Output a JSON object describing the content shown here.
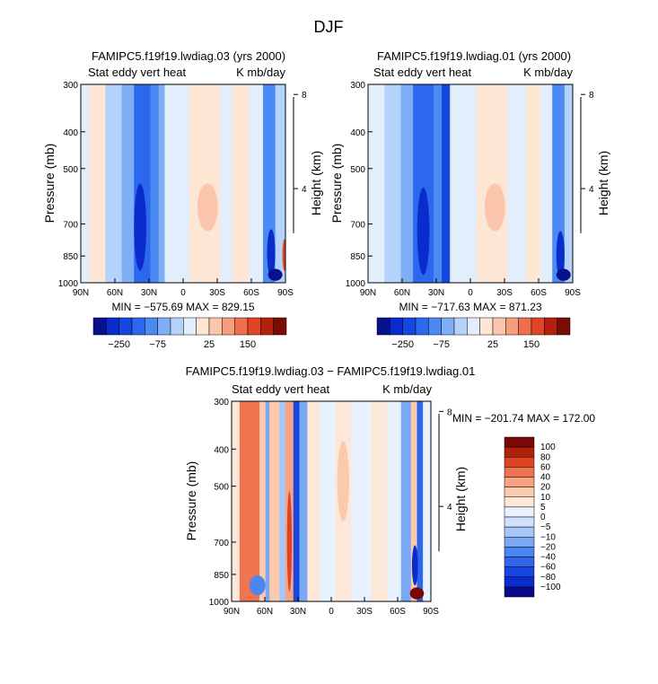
{
  "page": {
    "title": "DJF"
  },
  "colors": {
    "levels_13": [
      "#08108c",
      "#0a2ccc",
      "#1646e0",
      "#2c68ee",
      "#4a8af2",
      "#7eaef6",
      "#b4d2fa",
      "#e2eefc",
      "#fde6d4",
      "#fbc6ac",
      "#f79e7e",
      "#f06e4e",
      "#e04626",
      "#b4200e",
      "#7a0c06"
    ],
    "levels_diff": [
      "#080a8a",
      "#0a2ccc",
      "#1846e0",
      "#2e66ec",
      "#4c86f0",
      "#7aa8f4",
      "#a6c6f8",
      "#cee0fc",
      "#e8f2fe",
      "#fde8d8",
      "#fbcaae",
      "#f7a282",
      "#f07450",
      "#dc4424",
      "#b0200c",
      "#7a0806"
    ]
  },
  "chart_data": [
    {
      "type": "heatmap",
      "title": "FAMIPC5.f19f19.lwdiag.03 (yrs 2000)",
      "subtitle_left": "Stat eddy vert heat",
      "subtitle_right": "K mb/day",
      "ylabel": "Pressure (mb)",
      "ylabel_right": "Height (km)",
      "x_ticks": [
        "90N",
        "60N",
        "30N",
        "0",
        "30S",
        "60S",
        "90S"
      ],
      "y_ticks": [
        "300",
        "400",
        "500",
        "700",
        "850",
        "1000"
      ],
      "y_ticks_right": [
        "8",
        "4"
      ],
      "stats": "MIN = −575.69    MAX = 829.15",
      "colorbar_labels": [
        "−250",
        "−75",
        "25",
        "150"
      ],
      "bands": [
        {
          "from": 0.0,
          "to": 0.04,
          "level": 7
        },
        {
          "from": 0.04,
          "to": 0.12,
          "level": 8
        },
        {
          "from": 0.12,
          "to": 0.2,
          "level": 6
        },
        {
          "from": 0.2,
          "to": 0.26,
          "level": 5
        },
        {
          "from": 0.26,
          "to": 0.34,
          "level": 3
        },
        {
          "from": 0.34,
          "to": 0.38,
          "level": 4
        },
        {
          "from": 0.38,
          "to": 0.41,
          "level": 5
        },
        {
          "from": 0.41,
          "to": 0.53,
          "level": 7
        },
        {
          "from": 0.53,
          "to": 0.68,
          "level": 8
        },
        {
          "from": 0.68,
          "to": 0.74,
          "level": 7
        },
        {
          "from": 0.74,
          "to": 0.82,
          "level": 8
        },
        {
          "from": 0.82,
          "to": 0.89,
          "level": 7
        },
        {
          "from": 0.89,
          "to": 0.95,
          "level": 4
        },
        {
          "from": 0.95,
          "to": 1.0,
          "level": 6
        }
      ],
      "blobs": [
        {
          "cx": 0.62,
          "cy": 0.62,
          "rx": 0.05,
          "ry": 0.12,
          "level": 9
        },
        {
          "cx": 0.29,
          "cy": 0.72,
          "rx": 0.03,
          "ry": 0.22,
          "level": 1
        },
        {
          "cx": 0.93,
          "cy": 0.85,
          "rx": 0.02,
          "ry": 0.12,
          "level": 1
        },
        {
          "cx": 0.95,
          "cy": 0.96,
          "rx": 0.035,
          "ry": 0.03,
          "level": 0
        },
        {
          "cx": 0.995,
          "cy": 0.86,
          "rx": 0.01,
          "ry": 0.08,
          "level": 12
        }
      ]
    },
    {
      "type": "heatmap",
      "title": "FAMIPC5.f19f19.lwdiag.01 (yrs 2000)",
      "subtitle_left": "Stat eddy vert heat",
      "subtitle_right": "K mb/day",
      "ylabel": "Pressure (mb)",
      "ylabel_right": "Height (km)",
      "x_ticks": [
        "90N",
        "60N",
        "30N",
        "0",
        "30S",
        "60S",
        "90S"
      ],
      "y_ticks": [
        "300",
        "400",
        "500",
        "700",
        "850",
        "1000"
      ],
      "y_ticks_right": [
        "8",
        "4"
      ],
      "stats": "MIN = −717.63    MAX = 871.23",
      "colorbar_labels": [
        "−250",
        "−75",
        "25",
        "150"
      ],
      "bands": [
        {
          "from": 0.0,
          "to": 0.08,
          "level": 7
        },
        {
          "from": 0.08,
          "to": 0.16,
          "level": 6
        },
        {
          "from": 0.16,
          "to": 0.22,
          "level": 5
        },
        {
          "from": 0.22,
          "to": 0.32,
          "level": 3
        },
        {
          "from": 0.32,
          "to": 0.36,
          "level": 4
        },
        {
          "from": 0.36,
          "to": 0.4,
          "level": 2
        },
        {
          "from": 0.4,
          "to": 0.53,
          "level": 7
        },
        {
          "from": 0.53,
          "to": 0.68,
          "level": 8
        },
        {
          "from": 0.68,
          "to": 0.77,
          "level": 7
        },
        {
          "from": 0.77,
          "to": 0.84,
          "level": 8
        },
        {
          "from": 0.84,
          "to": 0.9,
          "level": 7
        },
        {
          "from": 0.9,
          "to": 0.96,
          "level": 4
        },
        {
          "from": 0.96,
          "to": 1.0,
          "level": 6
        }
      ],
      "blobs": [
        {
          "cx": 0.62,
          "cy": 0.62,
          "rx": 0.05,
          "ry": 0.12,
          "level": 9
        },
        {
          "cx": 0.27,
          "cy": 0.74,
          "rx": 0.03,
          "ry": 0.22,
          "level": 1
        },
        {
          "cx": 0.94,
          "cy": 0.86,
          "rx": 0.02,
          "ry": 0.12,
          "level": 1
        },
        {
          "cx": 0.955,
          "cy": 0.96,
          "rx": 0.035,
          "ry": 0.03,
          "level": 0
        }
      ]
    },
    {
      "type": "heatmap",
      "title": "FAMIPC5.f19f19.lwdiag.03 − FAMIPC5.f19f19.lwdiag.01",
      "subtitle_left": "Stat eddy vert heat",
      "subtitle_right": "K mb/day",
      "ylabel": "Pressure (mb)",
      "ylabel_right": "Height (km)",
      "x_ticks": [
        "90N",
        "60N",
        "30N",
        "0",
        "30S",
        "60S",
        "90S"
      ],
      "y_ticks": [
        "300",
        "400",
        "500",
        "700",
        "850",
        "1000"
      ],
      "y_ticks_right": [
        "8",
        "4"
      ],
      "stats": "MIN = −201.74    MAX = 172.00",
      "colorbar_labels": [
        "100",
        "80",
        "60",
        "40",
        "20",
        "10",
        "5",
        "0",
        "−5",
        "−10",
        "−20",
        "−40",
        "−60",
        "−80",
        "−100"
      ],
      "bands": [
        {
          "from": 0.0,
          "to": 0.04,
          "level": 9
        },
        {
          "from": 0.04,
          "to": 0.14,
          "level": 12
        },
        {
          "from": 0.14,
          "to": 0.17,
          "level": 10
        },
        {
          "from": 0.17,
          "to": 0.19,
          "level": 5
        },
        {
          "from": 0.19,
          "to": 0.24,
          "level": 10
        },
        {
          "from": 0.24,
          "to": 0.27,
          "level": 6
        },
        {
          "from": 0.27,
          "to": 0.31,
          "level": 11
        },
        {
          "from": 0.31,
          "to": 0.34,
          "level": 2
        },
        {
          "from": 0.34,
          "to": 0.38,
          "level": 5
        },
        {
          "from": 0.38,
          "to": 0.44,
          "level": 9
        },
        {
          "from": 0.44,
          "to": 0.52,
          "level": 8
        },
        {
          "from": 0.52,
          "to": 0.6,
          "level": 9
        },
        {
          "from": 0.6,
          "to": 0.7,
          "level": 8
        },
        {
          "from": 0.7,
          "to": 0.78,
          "level": 9
        },
        {
          "from": 0.78,
          "to": 0.85,
          "level": 8
        },
        {
          "from": 0.85,
          "to": 0.9,
          "level": 5
        },
        {
          "from": 0.9,
          "to": 0.93,
          "level": 10
        },
        {
          "from": 0.93,
          "to": 0.96,
          "level": 3
        },
        {
          "from": 0.96,
          "to": 1.0,
          "level": 8
        }
      ],
      "blobs": [
        {
          "cx": 0.13,
          "cy": 0.92,
          "rx": 0.04,
          "ry": 0.05,
          "level": 4
        },
        {
          "cx": 0.93,
          "cy": 0.96,
          "rx": 0.035,
          "ry": 0.03,
          "level": 15
        },
        {
          "cx": 0.92,
          "cy": 0.82,
          "rx": 0.015,
          "ry": 0.1,
          "level": 1
        },
        {
          "cx": 0.29,
          "cy": 0.7,
          "rx": 0.012,
          "ry": 0.25,
          "level": 13
        },
        {
          "cx": 0.56,
          "cy": 0.4,
          "rx": 0.03,
          "ry": 0.2,
          "level": 10
        }
      ]
    }
  ]
}
